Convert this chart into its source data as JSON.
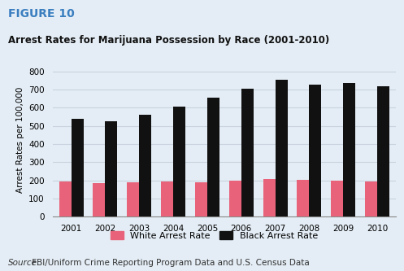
{
  "title_figure": "FIGURE 10",
  "title_chart": "Arrest Rates for Marijuana Possession by Race (2001-2010)",
  "years": [
    2001,
    2002,
    2003,
    2004,
    2005,
    2006,
    2007,
    2008,
    2009,
    2010
  ],
  "white_rates": [
    195,
    185,
    192,
    196,
    191,
    200,
    208,
    202,
    199,
    194
  ],
  "black_rates": [
    540,
    525,
    560,
    607,
    655,
    707,
    752,
    726,
    736,
    718
  ],
  "white_color": "#e8637a",
  "black_color": "#111111",
  "ylabel": "Arrest Rates per 100,000",
  "ylim": [
    0,
    850
  ],
  "yticks": [
    0,
    100,
    200,
    300,
    400,
    500,
    600,
    700,
    800
  ],
  "source_text_italic": "Source:",
  "source_text_normal": " FBI/Uniform Crime Reporting Program Data and U.S. Census Data",
  "legend_white": "White Arrest Rate",
  "legend_black": "Black Arrest Rate",
  "bg_color": "#e4edf5",
  "figure_label_color": "#3a7ec0",
  "bar_width": 0.36,
  "grid_color": "#c8d4e0",
  "title_figure_fontsize": 10,
  "title_chart_fontsize": 8.5,
  "axis_fontsize": 7.5,
  "source_fontsize": 7.5,
  "legend_fontsize": 8
}
